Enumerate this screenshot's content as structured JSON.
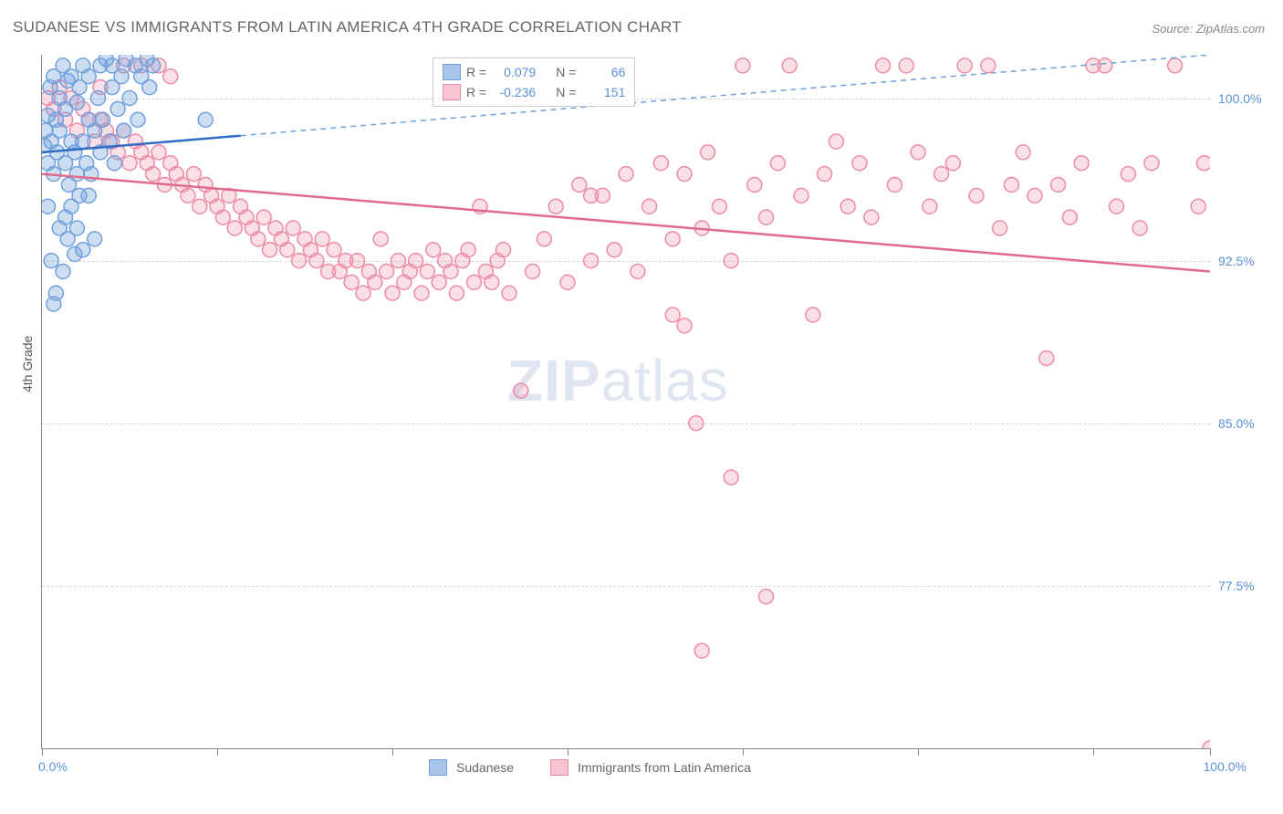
{
  "title": "SUDANESE VS IMMIGRANTS FROM LATIN AMERICA 4TH GRADE CORRELATION CHART",
  "source": "Source: ZipAtlas.com",
  "watermark": "ZIPatlas",
  "y_axis_label": "4th Grade",
  "chart": {
    "type": "scatter",
    "xlim": [
      0,
      100
    ],
    "ylim": [
      70,
      102
    ],
    "y_ticks": [
      {
        "value": 100.0,
        "label": "100.0%"
      },
      {
        "value": 92.5,
        "label": "92.5%"
      },
      {
        "value": 85.0,
        "label": "85.0%"
      },
      {
        "value": 77.5,
        "label": "77.5%"
      }
    ],
    "x_ticks": [
      0,
      15,
      30,
      45,
      60,
      75,
      90,
      100
    ],
    "x_tick_labels": {
      "left": "0.0%",
      "right": "100.0%"
    },
    "grid_color": "#d5d5d5",
    "background_color": "#ffffff",
    "marker_radius": 8,
    "marker_stroke_width": 1.5,
    "trend_line_width": 2.5,
    "series": [
      {
        "name": "Sudanese",
        "color_fill": "rgba(111,160,220,0.35)",
        "color_stroke": "#6fa0dc",
        "swatch_fill": "#a8c5ea",
        "swatch_border": "#6fa0dc",
        "r": "0.079",
        "n": "66",
        "trend": {
          "x1": 0,
          "y1": 97.5,
          "x2": 100,
          "y2": 102,
          "dash_after_x": 17
        },
        "points": [
          [
            0.2,
            97.8
          ],
          [
            0.3,
            98.5
          ],
          [
            0.5,
            99.2
          ],
          [
            0.5,
            97.0
          ],
          [
            0.7,
            100.5
          ],
          [
            0.8,
            98.0
          ],
          [
            1.0,
            101.0
          ],
          [
            1.0,
            96.5
          ],
          [
            1.2,
            99.0
          ],
          [
            1.3,
            97.5
          ],
          [
            1.5,
            100.0
          ],
          [
            1.5,
            98.5
          ],
          [
            1.8,
            101.5
          ],
          [
            2.0,
            97.0
          ],
          [
            2.0,
            99.5
          ],
          [
            2.2,
            100.8
          ],
          [
            2.3,
            96.0
          ],
          [
            2.5,
            98.0
          ],
          [
            2.5,
            101.0
          ],
          [
            2.8,
            97.5
          ],
          [
            3.0,
            99.8
          ],
          [
            3.0,
            96.5
          ],
          [
            3.2,
            100.5
          ],
          [
            3.5,
            98.0
          ],
          [
            3.5,
            101.5
          ],
          [
            3.8,
            97.0
          ],
          [
            4.0,
            99.0
          ],
          [
            4.0,
            101.0
          ],
          [
            4.2,
            96.5
          ],
          [
            4.5,
            98.5
          ],
          [
            4.8,
            100.0
          ],
          [
            5.0,
            101.5
          ],
          [
            5.0,
            97.5
          ],
          [
            5.2,
            99.0
          ],
          [
            5.5,
            101.8
          ],
          [
            5.8,
            98.0
          ],
          [
            6.0,
            100.5
          ],
          [
            6.0,
            101.5
          ],
          [
            6.2,
            97.0
          ],
          [
            6.5,
            99.5
          ],
          [
            6.8,
            101.0
          ],
          [
            7.0,
            98.5
          ],
          [
            7.2,
            101.8
          ],
          [
            7.5,
            100.0
          ],
          [
            8.0,
            101.5
          ],
          [
            8.2,
            99.0
          ],
          [
            8.5,
            101.0
          ],
          [
            9.0,
            101.8
          ],
          [
            9.2,
            100.5
          ],
          [
            9.5,
            101.5
          ],
          [
            0.8,
            92.5
          ],
          [
            1.0,
            90.5
          ],
          [
            1.2,
            91.0
          ],
          [
            1.8,
            92.0
          ],
          [
            2.0,
            94.5
          ],
          [
            2.2,
            93.5
          ],
          [
            2.5,
            95.0
          ],
          [
            2.8,
            92.8
          ],
          [
            3.0,
            94.0
          ],
          [
            3.2,
            95.5
          ],
          [
            3.5,
            93.0
          ],
          [
            14.0,
            99.0
          ],
          [
            0.5,
            95.0
          ],
          [
            1.5,
            94.0
          ],
          [
            4.0,
            95.5
          ],
          [
            4.5,
            93.5
          ]
        ]
      },
      {
        "name": "Immigrants from Latin America",
        "color_fill": "rgba(240,148,172,0.30)",
        "color_stroke": "#ec8ba5",
        "swatch_fill": "#f7c5d2",
        "swatch_border": "#ec8ba5",
        "r": "-0.236",
        "n": "151",
        "trend": {
          "x1": 0,
          "y1": 96.5,
          "x2": 100,
          "y2": 92.0,
          "dash_after_x": null
        },
        "points": [
          [
            0.5,
            100.0
          ],
          [
            1.0,
            99.5
          ],
          [
            1.5,
            100.5
          ],
          [
            2.0,
            99.0
          ],
          [
            2.5,
            100.0
          ],
          [
            3.0,
            98.5
          ],
          [
            3.5,
            99.5
          ],
          [
            4.0,
            99.0
          ],
          [
            4.5,
            98.0
          ],
          [
            5.0,
            99.0
          ],
          [
            5.5,
            98.5
          ],
          [
            6.0,
            98.0
          ],
          [
            6.5,
            97.5
          ],
          [
            7.0,
            98.5
          ],
          [
            7.5,
            97.0
          ],
          [
            8.0,
            98.0
          ],
          [
            8.5,
            97.5
          ],
          [
            9.0,
            97.0
          ],
          [
            9.5,
            96.5
          ],
          [
            10.0,
            97.5
          ],
          [
            10.5,
            96.0
          ],
          [
            11.0,
            97.0
          ],
          [
            11.5,
            96.5
          ],
          [
            12.0,
            96.0
          ],
          [
            12.5,
            95.5
          ],
          [
            13.0,
            96.5
          ],
          [
            13.5,
            95.0
          ],
          [
            14.0,
            96.0
          ],
          [
            14.5,
            95.5
          ],
          [
            15.0,
            95.0
          ],
          [
            15.5,
            94.5
          ],
          [
            16.0,
            95.5
          ],
          [
            16.5,
            94.0
          ],
          [
            17.0,
            95.0
          ],
          [
            17.5,
            94.5
          ],
          [
            18.0,
            94.0
          ],
          [
            18.5,
            93.5
          ],
          [
            19.0,
            94.5
          ],
          [
            19.5,
            93.0
          ],
          [
            20.0,
            94.0
          ],
          [
            20.5,
            93.5
          ],
          [
            21.0,
            93.0
          ],
          [
            21.5,
            94.0
          ],
          [
            22.0,
            92.5
          ],
          [
            22.5,
            93.5
          ],
          [
            23.0,
            93.0
          ],
          [
            23.5,
            92.5
          ],
          [
            24.0,
            93.5
          ],
          [
            24.5,
            92.0
          ],
          [
            25.0,
            93.0
          ],
          [
            25.5,
            92.0
          ],
          [
            26.0,
            92.5
          ],
          [
            26.5,
            91.5
          ],
          [
            27.0,
            92.5
          ],
          [
            27.5,
            91.0
          ],
          [
            28.0,
            92.0
          ],
          [
            28.5,
            91.5
          ],
          [
            29.0,
            93.5
          ],
          [
            29.5,
            92.0
          ],
          [
            30.0,
            91.0
          ],
          [
            30.5,
            92.5
          ],
          [
            31.0,
            91.5
          ],
          [
            31.5,
            92.0
          ],
          [
            32.0,
            92.5
          ],
          [
            32.5,
            91.0
          ],
          [
            33.0,
            92.0
          ],
          [
            33.5,
            93.0
          ],
          [
            34.0,
            91.5
          ],
          [
            34.5,
            92.5
          ],
          [
            35.0,
            92.0
          ],
          [
            35.5,
            91.0
          ],
          [
            36.0,
            92.5
          ],
          [
            36.5,
            93.0
          ],
          [
            37.0,
            91.5
          ],
          [
            37.5,
            95.0
          ],
          [
            38.0,
            92.0
          ],
          [
            38.5,
            91.5
          ],
          [
            39.0,
            92.5
          ],
          [
            39.5,
            93.0
          ],
          [
            40.0,
            91.0
          ],
          [
            41.0,
            86.5
          ],
          [
            42.0,
            92.0
          ],
          [
            43.0,
            93.5
          ],
          [
            44.0,
            95.0
          ],
          [
            45.0,
            91.5
          ],
          [
            46.0,
            96.0
          ],
          [
            47.0,
            92.5
          ],
          [
            48.0,
            95.5
          ],
          [
            49.0,
            93.0
          ],
          [
            50.0,
            96.5
          ],
          [
            51.0,
            92.0
          ],
          [
            52.0,
            95.0
          ],
          [
            53.0,
            97.0
          ],
          [
            54.0,
            93.5
          ],
          [
            55.0,
            96.5
          ],
          [
            56.0,
            85.0
          ],
          [
            56.5,
            94.0
          ],
          [
            57.0,
            97.5
          ],
          [
            58.0,
            95.0
          ],
          [
            59.0,
            92.5
          ],
          [
            60.0,
            101.5
          ],
          [
            61.0,
            96.0
          ],
          [
            62.0,
            94.5
          ],
          [
            63.0,
            97.0
          ],
          [
            64.0,
            101.5
          ],
          [
            65.0,
            95.5
          ],
          [
            66.0,
            90.0
          ],
          [
            67.0,
            96.5
          ],
          [
            68.0,
            98.0
          ],
          [
            69.0,
            95.0
          ],
          [
            70.0,
            97.0
          ],
          [
            71.0,
            94.5
          ],
          [
            72.0,
            101.5
          ],
          [
            73.0,
            96.0
          ],
          [
            74.0,
            101.5
          ],
          [
            75.0,
            97.5
          ],
          [
            76.0,
            95.0
          ],
          [
            77.0,
            96.5
          ],
          [
            78.0,
            97.0
          ],
          [
            79.0,
            101.5
          ],
          [
            80.0,
            95.5
          ],
          [
            81.0,
            101.5
          ],
          [
            82.0,
            94.0
          ],
          [
            83.0,
            96.0
          ],
          [
            84.0,
            97.5
          ],
          [
            85.0,
            95.5
          ],
          [
            86.0,
            88.0
          ],
          [
            87.0,
            96.0
          ],
          [
            88.0,
            94.5
          ],
          [
            89.0,
            97.0
          ],
          [
            90.0,
            101.5
          ],
          [
            91.0,
            101.5
          ],
          [
            92.0,
            95.0
          ],
          [
            93.0,
            96.5
          ],
          [
            94.0,
            94.0
          ],
          [
            95.0,
            97.0
          ],
          [
            54.0,
            90.0
          ],
          [
            55.0,
            89.5
          ],
          [
            56.5,
            74.5
          ],
          [
            62.0,
            77.0
          ],
          [
            59.0,
            82.5
          ],
          [
            47.0,
            95.5
          ],
          [
            97.0,
            101.5
          ],
          [
            100.0,
            70.0
          ],
          [
            7.0,
            101.5
          ],
          [
            8.5,
            101.5
          ],
          [
            10.0,
            101.5
          ],
          [
            99.0,
            95.0
          ],
          [
            99.5,
            97.0
          ],
          [
            5.0,
            100.5
          ],
          [
            11.0,
            101.0
          ]
        ]
      }
    ]
  },
  "legend_top": {
    "r_label": "R =",
    "n_label": "N ="
  },
  "legend_bottom": {
    "items": [
      "Sudanese",
      "Immigrants from Latin America"
    ]
  }
}
